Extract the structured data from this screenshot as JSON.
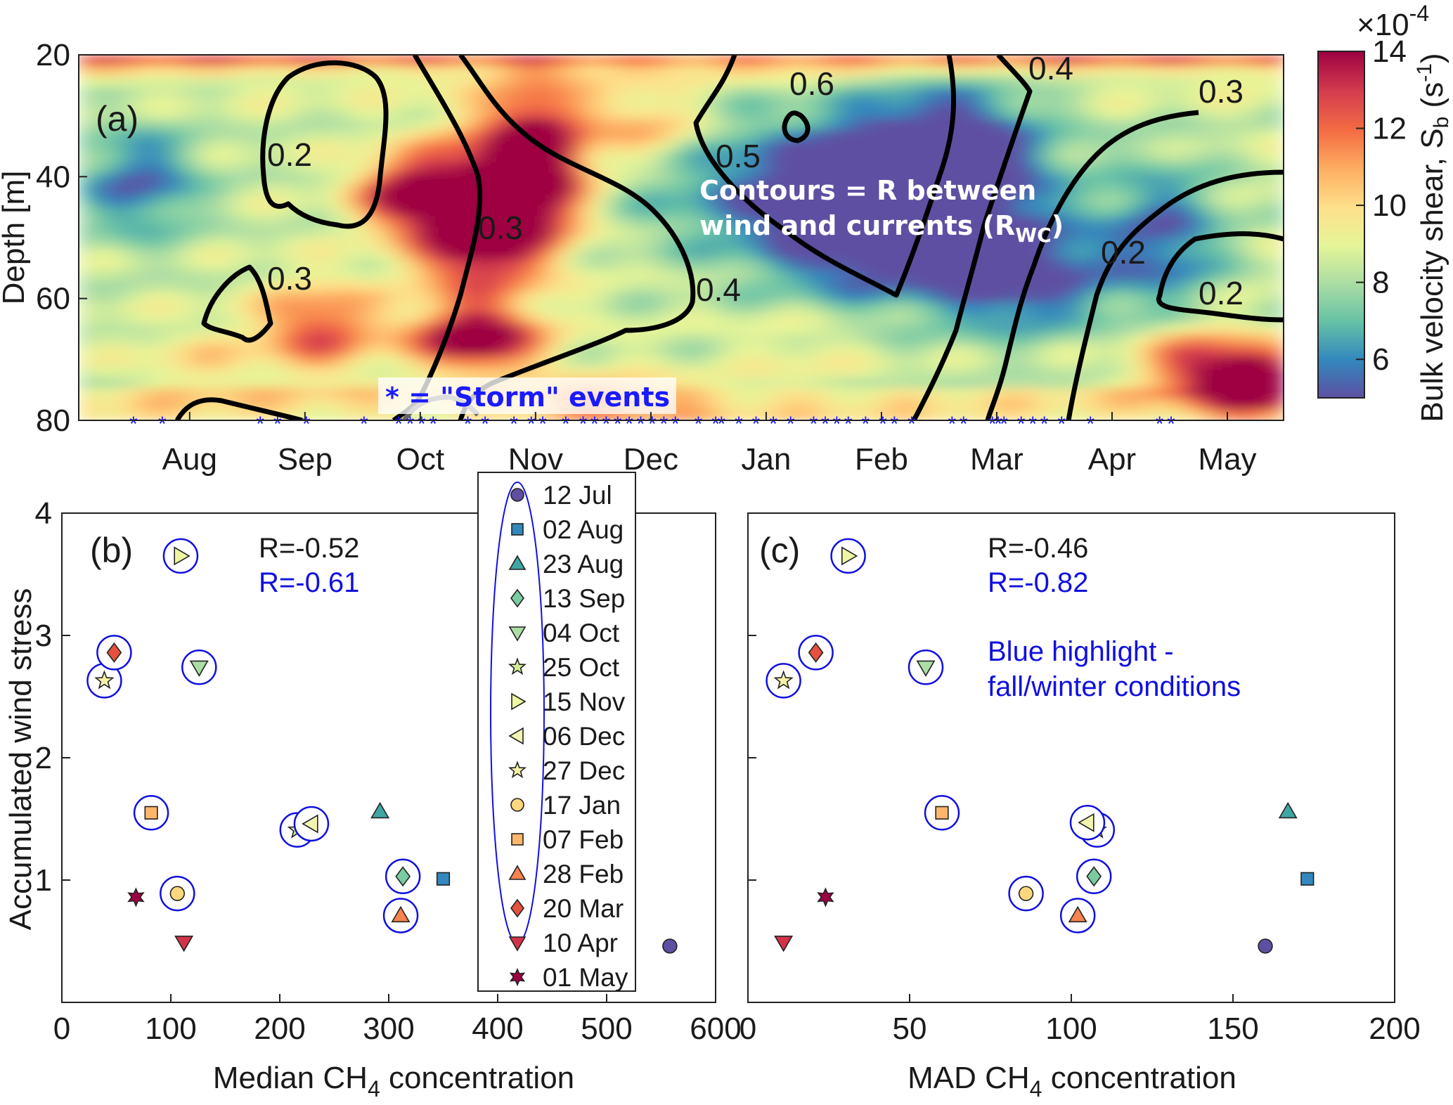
{
  "colors": {
    "colormap": [
      "#5e4fa2",
      "#3288bd",
      "#66c2a5",
      "#abdda4",
      "#e6f598",
      "#fee08b",
      "#fdae61",
      "#f46d43",
      "#d53e4f",
      "#9e0142"
    ],
    "highlight": "#1010e0",
    "contour": "#000000",
    "storm": "#1a1aff"
  },
  "chart_data": [
    {
      "type": "heatmap",
      "panel_label": "(a)",
      "ylabel": "Depth [m]",
      "ylim": [
        20,
        80
      ],
      "y_inverted": true,
      "yticks": [
        "20",
        "40",
        "60",
        "80"
      ],
      "x_months": [
        "Aug",
        "Sep",
        "Oct",
        "Nov",
        "Dec",
        "Jan",
        "Feb",
        "Mar",
        "Apr",
        "May"
      ],
      "colorbar": {
        "label_prefix": "Bulk velocity shear, S",
        "label_sub": "b",
        "label_units": " (s",
        "label_sup": "-1",
        "label_close": ")",
        "ticks": [
          "6",
          "8",
          "10",
          "12",
          "14"
        ],
        "range": [
          5,
          14
        ],
        "exponent_base": "×10",
        "exponent_power": "-4"
      },
      "annotation_contours": "Contours = R between",
      "annotation_contours2": "wind and currents (R",
      "annotation_contours_sub": "WC",
      "annotation_contours_close": ")",
      "annotation_storm": "* =  \"Storm\" events",
      "contour_labels": [
        "0.2",
        "0.3",
        "0.3",
        "0.6",
        "0.5",
        "0.4",
        "0.4",
        "0.3",
        "0.2",
        "0.2"
      ],
      "storm_event_months": [
        1.0,
        1.25,
        2.1,
        2.25,
        2.5,
        3.0,
        3.3,
        3.4,
        3.5,
        3.6,
        3.9,
        4.05,
        4.3,
        4.45,
        4.55,
        4.75,
        4.9,
        5.0,
        5.1,
        5.2,
        5.3,
        5.4,
        5.5,
        5.6,
        5.7,
        5.9,
        6.05,
        6.1,
        6.25,
        6.4,
        6.55,
        6.7,
        6.9,
        7.0,
        7.1,
        7.2,
        7.35,
        7.5,
        7.6,
        7.75,
        8.1,
        8.2,
        8.45,
        8.5,
        8.55,
        8.7,
        8.8,
        8.9,
        9.05,
        9.3,
        9.9,
        10.0
      ]
    },
    {
      "type": "scatter",
      "panel_label": "(b)",
      "xlabel_main": "Median CH",
      "xlabel_sub": "4",
      "xlabel_tail": " concentration",
      "ylabel": "Accumulated wind stress",
      "xlim": [
        0,
        600
      ],
      "ylim": [
        0,
        4
      ],
      "xticks": [
        "0",
        "100",
        "200",
        "300",
        "400",
        "500",
        "600"
      ],
      "yticks": [
        "1",
        "2",
        "3",
        "4"
      ],
      "r_all": "R=-0.52",
      "r_highlight": "R=-0.61",
      "points": [
        {
          "x": 558,
          "y": 0.46
        },
        {
          "x": 350,
          "y": 1.01
        },
        {
          "x": 292,
          "y": 1.56
        },
        {
          "x": 313,
          "y": 1.03
        },
        {
          "x": 126,
          "y": 2.74
        },
        {
          "x": 216,
          "y": 1.41
        },
        {
          "x": 109,
          "y": 3.65
        },
        {
          "x": 229,
          "y": 1.46
        },
        {
          "x": 39,
          "y": 2.63
        },
        {
          "x": 106,
          "y": 0.89
        },
        {
          "x": 82,
          "y": 1.55
        },
        {
          "x": 311,
          "y": 0.71
        },
        {
          "x": 48,
          "y": 2.86
        },
        {
          "x": 112,
          "y": 0.49
        },
        {
          "x": 68,
          "y": 0.86
        }
      ]
    },
    {
      "type": "scatter",
      "panel_label": "(c)",
      "xlabel_main": "MAD CH",
      "xlabel_sub": "4",
      "xlabel_tail": " concentration",
      "xlim": [
        0,
        200
      ],
      "ylim": [
        0,
        4
      ],
      "xticks": [
        "0",
        "50",
        "100",
        "150",
        "200"
      ],
      "r_all": "R=-0.46",
      "r_highlight": "R=-0.82",
      "note_line1": "Blue highlight -",
      "note_line2": "fall/winter conditions",
      "points": [
        {
          "x": 160,
          "y": 0.46
        },
        {
          "x": 173,
          "y": 1.01
        },
        {
          "x": 167,
          "y": 1.56
        },
        {
          "x": 107,
          "y": 1.03
        },
        {
          "x": 55,
          "y": 2.74
        },
        {
          "x": 108,
          "y": 1.41
        },
        {
          "x": 31,
          "y": 3.65
        },
        {
          "x": 105,
          "y": 1.47
        },
        {
          "x": 11,
          "y": 2.63
        },
        {
          "x": 86,
          "y": 0.89
        },
        {
          "x": 60,
          "y": 1.55
        },
        {
          "x": 102,
          "y": 0.71
        },
        {
          "x": 21,
          "y": 2.86
        },
        {
          "x": 11,
          "y": 0.49
        },
        {
          "x": 24,
          "y": 0.86
        }
      ]
    }
  ],
  "legend": [
    {
      "label": "12 Jul",
      "marker": "circle",
      "color": "#5e4fa2",
      "highlight": false
    },
    {
      "label": "02 Aug",
      "marker": "square",
      "color": "#3288bd",
      "highlight": false
    },
    {
      "label": "23 Aug",
      "marker": "triangle-up",
      "color": "#40a6a3",
      "highlight": false
    },
    {
      "label": "13 Sep",
      "marker": "diamond",
      "color": "#7acba0",
      "highlight": true
    },
    {
      "label": "04 Oct",
      "marker": "triangle-down",
      "color": "#abdda4",
      "highlight": true
    },
    {
      "label": "25 Oct",
      "marker": "star",
      "color": "#d3ec99",
      "highlight": true
    },
    {
      "label": "15 Nov",
      "marker": "triangle-right",
      "color": "#eef6a2",
      "highlight": true
    },
    {
      "label": "06 Dec",
      "marker": "triangle-left",
      "color": "#f2f5b0",
      "highlight": true
    },
    {
      "label": "27 Dec",
      "marker": "star",
      "color": "#f7f2a8",
      "highlight": true
    },
    {
      "label": "17 Jan",
      "marker": "circle",
      "color": "#fdd77e",
      "highlight": true
    },
    {
      "label": "07 Feb",
      "marker": "square",
      "color": "#fdb66a",
      "highlight": true
    },
    {
      "label": "28 Feb",
      "marker": "triangle-up",
      "color": "#f7834f",
      "highlight": true
    },
    {
      "label": "20 Mar",
      "marker": "diamond",
      "color": "#e5503f",
      "highlight": true
    },
    {
      "label": "10 Apr",
      "marker": "triangle-down",
      "color": "#d33349",
      "highlight": false
    },
    {
      "label": "01 May",
      "marker": "hexstar",
      "color": "#9e0142",
      "highlight": false
    }
  ]
}
